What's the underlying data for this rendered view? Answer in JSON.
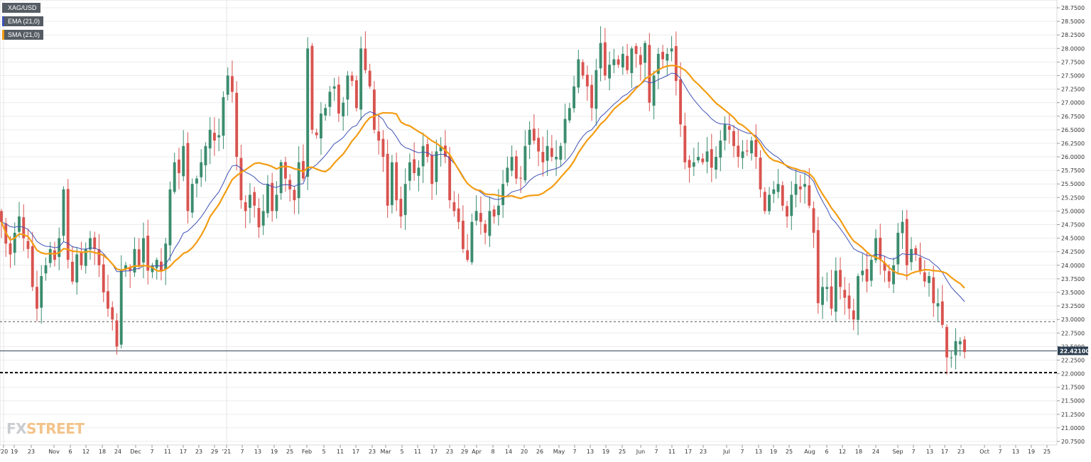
{
  "legend": {
    "symbol": "XAG/USD",
    "ema_label": "EMA (21,0)",
    "sma_label": "SMA (21,0)"
  },
  "logo": {
    "left": "FX",
    "right": "STREET"
  },
  "price_label": "22.42100",
  "colors": {
    "up": "#3b8c6e",
    "down": "#d9534f",
    "ema": "#3f51b5",
    "sma": "#f39c12",
    "price_line": "#2c3e50",
    "grid": "#ececec"
  },
  "chart_data": {
    "type": "candlestick",
    "ylim": [
      20.75,
      28.75
    ],
    "y_ticks": [
      "20.7500",
      "21.0000",
      "21.2500",
      "21.5000",
      "21.7500",
      "22.0000",
      "22.2500",
      "22.5000",
      "22.7500",
      "23.0000",
      "23.2500",
      "23.5000",
      "23.7500",
      "24.0000",
      "24.2500",
      "24.5000",
      "24.7500",
      "25.0000",
      "25.2500",
      "25.5000",
      "25.7500",
      "26.0000",
      "26.2500",
      "26.5000",
      "26.7500",
      "27.0000",
      "27.2500",
      "27.5000",
      "27.7500",
      "28.0000",
      "28.2500",
      "28.5000",
      "28.7500"
    ],
    "x_ticks": [
      "'20",
      "19",
      "23",
      "Nov",
      "6",
      "12",
      "18",
      "24",
      "Dec",
      "7",
      "11",
      "17",
      "23",
      "29",
      "'21",
      "7",
      "13",
      "19",
      "25",
      "Feb",
      "5",
      "11",
      "17",
      "23",
      "Mar",
      "5",
      "11",
      "17",
      "23",
      "29",
      "Apr",
      "8",
      "14",
      "20",
      "26",
      "May",
      "7",
      "13",
      "19",
      "25",
      "Jun",
      "7",
      "11",
      "17",
      "23",
      "Jul",
      "7",
      "13",
      "19",
      "25",
      "Aug",
      "6",
      "12",
      "18",
      "24",
      "Sep",
      "7",
      "13",
      "17",
      "23",
      "Oct",
      "7",
      "13",
      "19",
      "25"
    ],
    "current_price": 22.421,
    "horizontal_levels": [
      {
        "value": 22.96,
        "style": "dashed"
      },
      {
        "value": 22.02,
        "style": "dotted-bold"
      }
    ],
    "series": [
      {
        "name": "XAG/USD",
        "kind": "ohlc",
        "closes": [
          24.8,
          24.4,
          24.2,
          24.6,
          24.9,
          24.5,
          24.3,
          23.6,
          23.2,
          23.8,
          24.0,
          24.3,
          24.1,
          24.5,
          25.4,
          24.1,
          23.7,
          24.2,
          24.0,
          24.3,
          24.5,
          24.3,
          24.0,
          23.5,
          23.2,
          23.0,
          22.5,
          23.9,
          24.0,
          23.9,
          24.3,
          24.0,
          24.5,
          23.9,
          24.0,
          24.1,
          23.9,
          24.4,
          25.4,
          25.9,
          25.7,
          26.2,
          25.0,
          25.5,
          25.6,
          25.9,
          26.2,
          26.5,
          26.3,
          26.4,
          27.1,
          27.5,
          27.2,
          26.0,
          25.2,
          25.0,
          25.3,
          25.1,
          24.7,
          25.0,
          25.5,
          25.0,
          25.3,
          25.9,
          25.6,
          25.4,
          25.2,
          25.9,
          25.6,
          28.0,
          26.5,
          26.4,
          26.8,
          26.9,
          27.2,
          27.3,
          26.8,
          27.0,
          27.5,
          27.4,
          26.9,
          28.0,
          27.6,
          27.3,
          26.5,
          26.3,
          26.0,
          25.1,
          25.9,
          25.2,
          24.9,
          25.5,
          25.9,
          25.7,
          25.8,
          26.2,
          26.0,
          25.5,
          26.1,
          26.2,
          26.0,
          25.2,
          25.0,
          24.8,
          24.3,
          24.1,
          24.8,
          25.0,
          24.8,
          24.6,
          25.0,
          24.9,
          25.1,
          25.5,
          25.8,
          26.0,
          25.6,
          25.6,
          26.2,
          26.5,
          26.3,
          26.1,
          25.9,
          26.2,
          26.0,
          26.0,
          26.2,
          26.7,
          26.9,
          27.3,
          27.8,
          27.5,
          27.3,
          26.9,
          27.6,
          28.1,
          27.5,
          27.7,
          27.8,
          27.7,
          27.9,
          27.6,
          28.0,
          27.9,
          27.7,
          28.1,
          27.0,
          27.5,
          27.9,
          27.8,
          27.9,
          28.0,
          27.4,
          26.6,
          25.9,
          25.8,
          25.9,
          26.0,
          25.9,
          26.1,
          25.8,
          26.0,
          26.3,
          26.6,
          26.5,
          26.2,
          26.0,
          26.1,
          26.1,
          26.3,
          26.0,
          25.4,
          25.0,
          25.3,
          25.4,
          25.5,
          25.1,
          24.9,
          25.3,
          25.5,
          25.4,
          25.5,
          25.1,
          24.6,
          23.3,
          23.6,
          23.6,
          23.2,
          23.9,
          23.6,
          23.4,
          23.2,
          23.0,
          23.8,
          23.9,
          23.7,
          24.1,
          24.5,
          24.1,
          23.9,
          23.7,
          24.0,
          24.6,
          24.8,
          24.0,
          24.3,
          24.2,
          23.9,
          23.7,
          23.8,
          23.3,
          23.3,
          22.9,
          22.3,
          22.3,
          22.6,
          22.6,
          22.4
        ]
      },
      {
        "name": "EMA (21,0)",
        "kind": "line"
      },
      {
        "name": "SMA (21,0)",
        "kind": "line"
      }
    ]
  }
}
